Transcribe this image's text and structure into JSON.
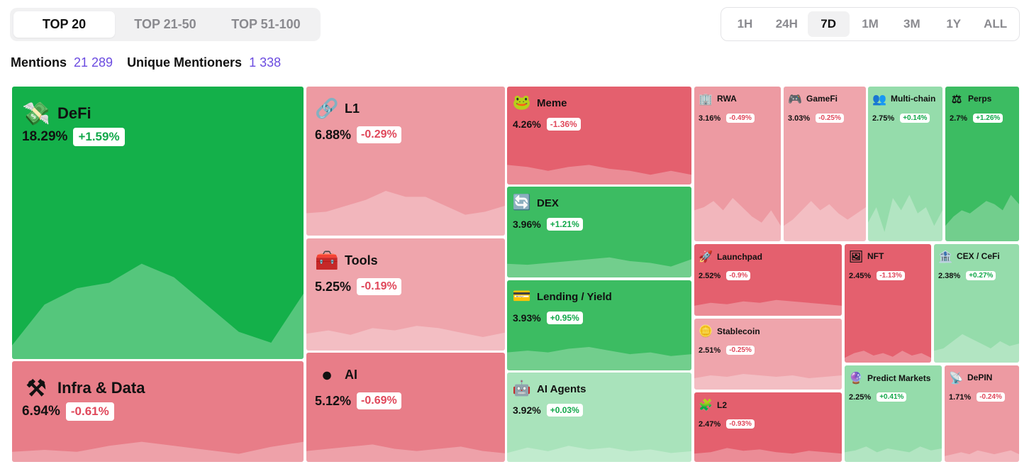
{
  "rank_tabs": [
    "TOP 20",
    "TOP 21-50",
    "TOP 51-100"
  ],
  "time_tabs": [
    "1H",
    "24H",
    "7D",
    "1M",
    "3M",
    "1Y",
    "ALL"
  ],
  "stats": {
    "mentions_label": "Mentions",
    "mentions_value": "21 289",
    "unique_label": "Unique Mentioners",
    "unique_value": "1 338"
  },
  "tiles": [
    {
      "name": "DeFi",
      "share": "18.29%",
      "change": "+1.59%",
      "icon": "money-bag-icon",
      "glyph": "💸"
    },
    {
      "name": "Infra & Data",
      "share": "6.94%",
      "change": "-0.61%",
      "icon": "tools-icon",
      "glyph": "⚒"
    },
    {
      "name": "L1",
      "share": "6.88%",
      "change": "-0.29%",
      "icon": "chain-link-icon",
      "glyph": "🔗"
    },
    {
      "name": "Tools",
      "share": "5.25%",
      "change": "-0.19%",
      "icon": "toolbox-icon",
      "glyph": "🧰"
    },
    {
      "name": "AI",
      "share": "5.12%",
      "change": "-0.69%",
      "icon": "orb-icon",
      "glyph": "●"
    },
    {
      "name": "Meme",
      "share": "4.26%",
      "change": "-1.36%",
      "icon": "frog-icon",
      "glyph": "🐸"
    },
    {
      "name": "DEX",
      "share": "3.96%",
      "change": "+1.21%",
      "icon": "swap-arrows-icon",
      "glyph": "🔄"
    },
    {
      "name": "Lending / Yield",
      "share": "3.93%",
      "change": "+0.95%",
      "icon": "card-icon",
      "glyph": "💳"
    },
    {
      "name": "AI Agents",
      "share": "3.92%",
      "change": "+0.03%",
      "icon": "robot-icon",
      "glyph": "🤖"
    },
    {
      "name": "RWA",
      "share": "3.16%",
      "change": "-0.49%",
      "icon": "building-icon",
      "glyph": "🏢"
    },
    {
      "name": "GameFi",
      "share": "3.03%",
      "change": "-0.25%",
      "icon": "gamepad-icon",
      "glyph": "🎮"
    },
    {
      "name": "Multi-chain",
      "share": "2.75%",
      "change": "+0.14%",
      "icon": "people-icon",
      "glyph": "👥"
    },
    {
      "name": "Perps",
      "share": "2.7%",
      "change": "+1.26%",
      "icon": "scales-icon",
      "glyph": "⚖"
    },
    {
      "name": "Launchpad",
      "share": "2.52%",
      "change": "-0.9%",
      "icon": "rocket-icon",
      "glyph": "🚀"
    },
    {
      "name": "NFT",
      "share": "2.45%",
      "change": "-1.13%",
      "icon": "picture-icon",
      "glyph": "🖼"
    },
    {
      "name": "CEX / CeFi",
      "share": "2.38%",
      "change": "+0.27%",
      "icon": "bank-icon",
      "glyph": "🏦"
    },
    {
      "name": "Stablecoin",
      "share": "2.51%",
      "change": "-0.25%",
      "icon": "coin-icon",
      "glyph": "🪙"
    },
    {
      "name": "L2",
      "share": "2.47%",
      "change": "-0.93%",
      "icon": "puzzle-icon",
      "glyph": "🧩"
    },
    {
      "name": "Predict Markets",
      "share": "2.25%",
      "change": "+0.41%",
      "icon": "crystal-ball-icon",
      "glyph": "🔮"
    },
    {
      "name": "DePIN",
      "share": "1.71%",
      "change": "-0.24%",
      "icon": "satellite-icon",
      "glyph": "📡"
    }
  ]
}
